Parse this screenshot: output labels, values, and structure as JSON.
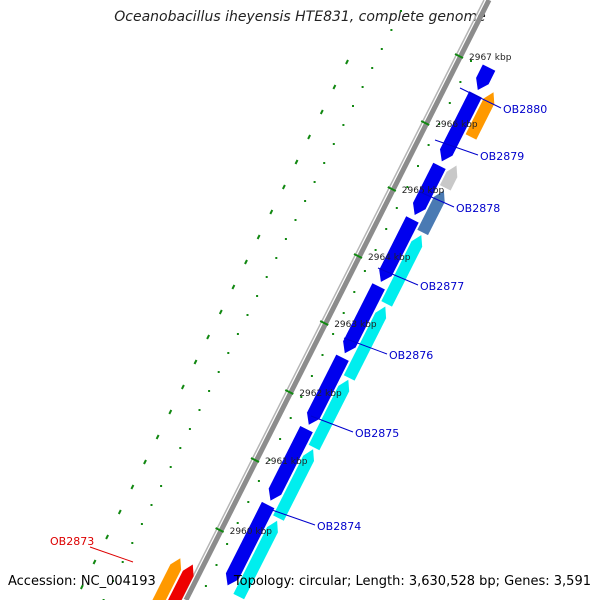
{
  "header": {
    "title": "Oceanobacillus iheyensis HTE831, complete genome"
  },
  "footer": {
    "accession": "Accession: NC_004193",
    "topology": "Topology: circular; Length: 3,630,528 bp; Genes: 3,591"
  },
  "ticks": [
    "2967 kbp",
    "2966 kbp",
    "2965 kbp",
    "2964 kbp",
    "2963 kbp",
    "2962 kbp",
    "2961 kbp",
    "2960 kbp"
  ],
  "gene_labels": [
    {
      "name": "OB2880",
      "color": "#0000cc"
    },
    {
      "name": "OB2879",
      "color": "#0000cc"
    },
    {
      "name": "OB2878",
      "color": "#0000cc"
    },
    {
      "name": "OB2877",
      "color": "#0000cc"
    },
    {
      "name": "OB2876",
      "color": "#0000cc"
    },
    {
      "name": "OB2875",
      "color": "#0000cc"
    },
    {
      "name": "OB2874",
      "color": "#0000cc"
    },
    {
      "name": "OB2873",
      "color": "#dd0000"
    }
  ],
  "colors": {
    "backbone": "#8c8c8c",
    "cds": "#0000ee",
    "cyan": "#00eeee",
    "orange": "#ff9900",
    "steelblue": "#4a7ab3",
    "gray": "#c8c8c8",
    "red": "#ee0000",
    "dots": "#118811"
  }
}
